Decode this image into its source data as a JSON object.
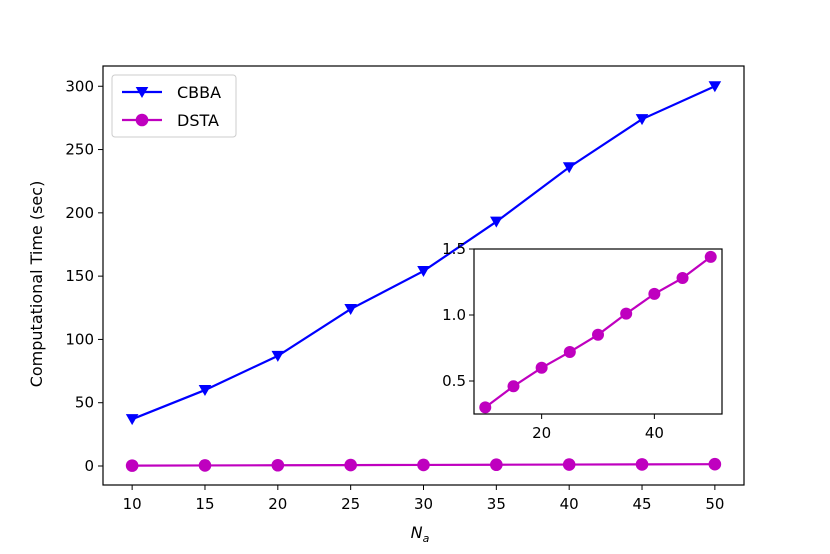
{
  "chart_data": {
    "type": "line",
    "xlabel": "N",
    "xlabel_sub": "a",
    "ylabel": "Computational Time (sec)",
    "x": [
      10,
      15,
      20,
      25,
      30,
      35,
      40,
      45,
      50
    ],
    "xlim": [
      8,
      52
    ],
    "ylim": [
      -15,
      316
    ],
    "xticks": [
      10,
      15,
      20,
      25,
      30,
      35,
      40,
      45,
      50
    ],
    "yticks": [
      0,
      50,
      100,
      150,
      200,
      250,
      300
    ],
    "grid": false,
    "legend": "top-left",
    "series": [
      {
        "name": "CBBA",
        "color": "#0000ff",
        "marker": "triangle-down",
        "values": [
          37,
          60,
          87,
          124,
          154,
          193,
          236,
          274,
          300
        ]
      },
      {
        "name": "DSTA",
        "color": "#bf00bf",
        "marker": "circle",
        "values": [
          0.3,
          0.46,
          0.6,
          0.72,
          0.85,
          1.01,
          1.16,
          1.28,
          1.44
        ]
      }
    ],
    "inset": {
      "type": "line",
      "series_ref": "DSTA",
      "xlim": [
        8,
        52
      ],
      "ylim": [
        0.25,
        1.5
      ],
      "xticks": [
        20,
        40
      ],
      "yticks": [
        0.5,
        1.0,
        1.5
      ],
      "ytick_labels": [
        "0.5",
        "1.0",
        "1.5"
      ]
    }
  }
}
